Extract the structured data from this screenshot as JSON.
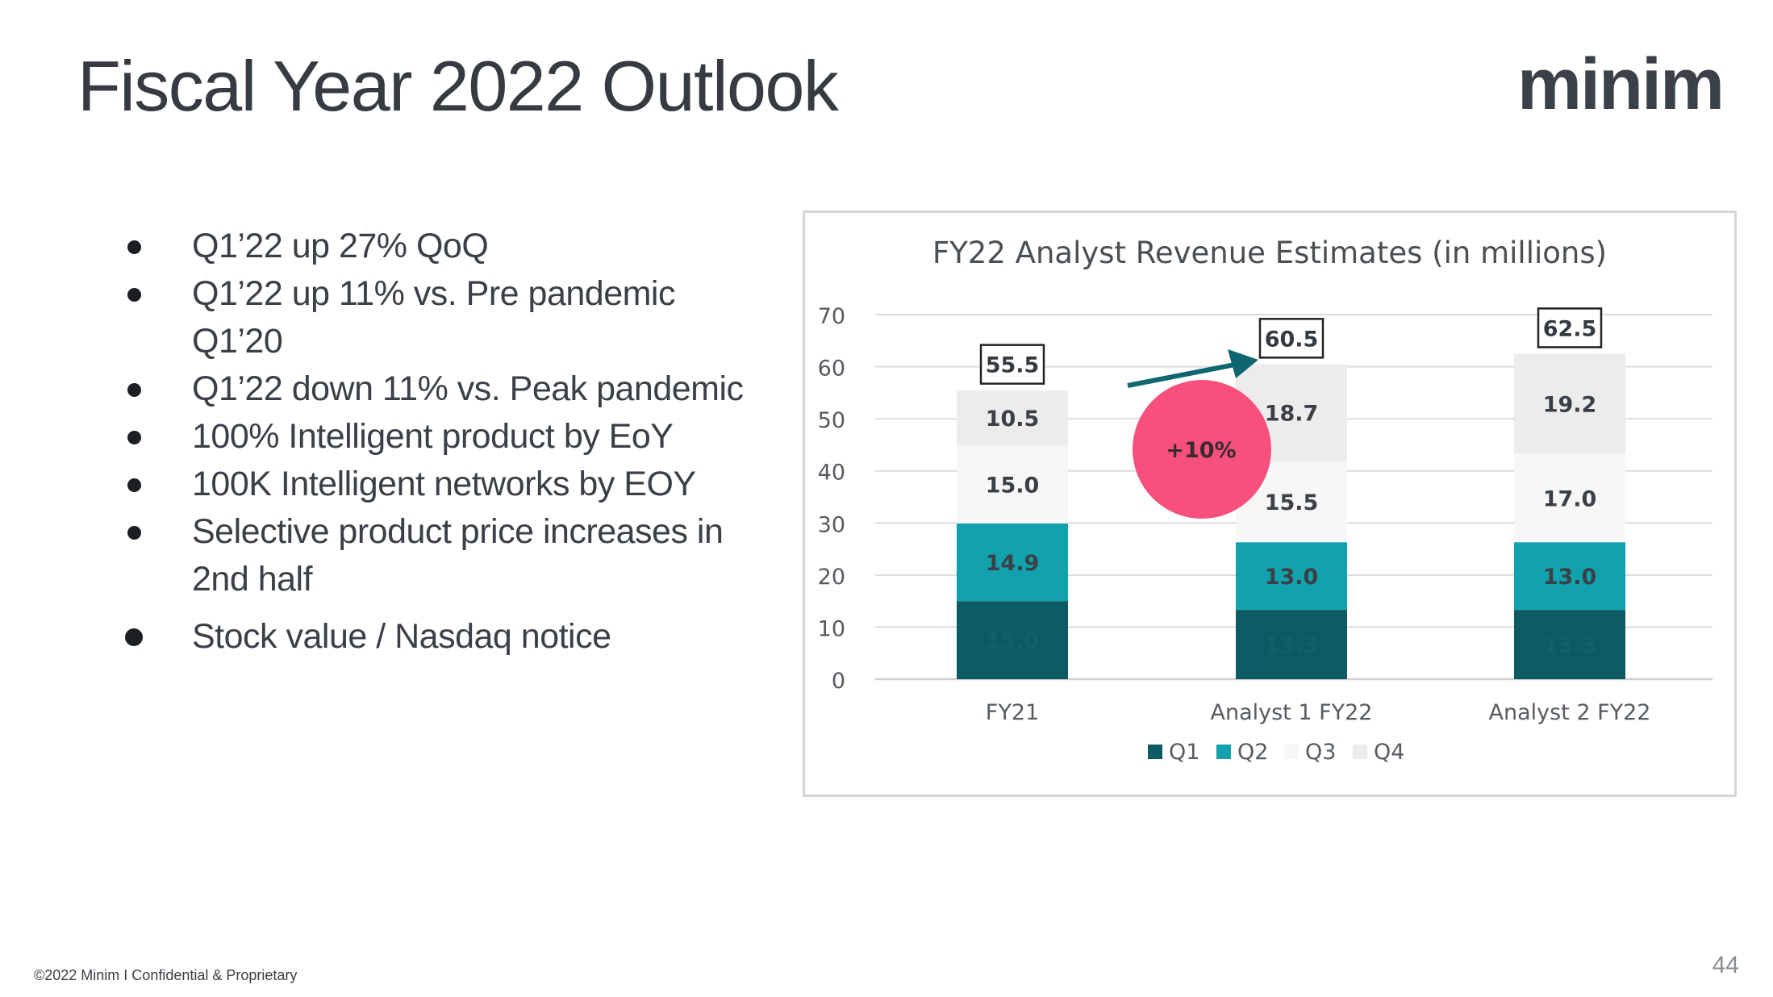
{
  "slide": {
    "title": "Fiscal Year 2022 Outlook",
    "logo_text": "minim",
    "footer": "©2022 Minim I Confidential & Proprietary",
    "page_number": "44"
  },
  "bullets": [
    "Q1’22 up 27% QoQ",
    "Q1’22 up 11% vs. Pre pandemic Q1’20",
    "Q1’22 down 11% vs. Peak pandemic",
    "100% Intelligent product by EoY",
    "100K Intelligent networks by EOY",
    "Selective product price increases in 2nd half",
    "Stock value / Nasdaq notice"
  ],
  "chart_data": {
    "type": "bar",
    "stacked": true,
    "title": "FY22 Analyst Revenue  Estimates (in millions)",
    "categories": [
      "FY21",
      "Analyst 1 FY22",
      "Analyst 2 FY22"
    ],
    "series": [
      {
        "name": "Q1",
        "values": [
          15.0,
          13.3,
          13.3
        ],
        "labels": [
          "15.0",
          "13.3",
          "13.3"
        ],
        "color": "#0c5b64",
        "label_color": "#145f69"
      },
      {
        "name": "Q2",
        "values": [
          14.9,
          13.0,
          13.0
        ],
        "labels": [
          "14.9",
          "13.0",
          "13.0"
        ],
        "color": "#11a2ae",
        "label_color": "#3a4046"
      },
      {
        "name": "Q3",
        "values": [
          15.0,
          15.5,
          17.0
        ],
        "labels": [
          "15.0",
          "15.5",
          "17.0"
        ],
        "color": "#f7f7f7",
        "label_color": "#3a4046"
      },
      {
        "name": "Q4",
        "values": [
          10.5,
          18.7,
          19.2
        ],
        "labels": [
          "10.5",
          "18.7",
          "19.2"
        ],
        "color": "#ececec",
        "label_color": "#3a4046"
      }
    ],
    "totals": [
      55.5,
      60.5,
      62.5
    ],
    "total_labels": [
      "55.5",
      "60.5",
      "62.5"
    ],
    "ylim": [
      0,
      70
    ],
    "yticks": [
      0,
      10,
      20,
      30,
      40,
      50,
      60,
      70
    ],
    "grid": true,
    "legend": "bottom",
    "annotation": {
      "text": "+10%",
      "circle_color": "#f7507c",
      "arrow_color": "#0f6670"
    }
  }
}
